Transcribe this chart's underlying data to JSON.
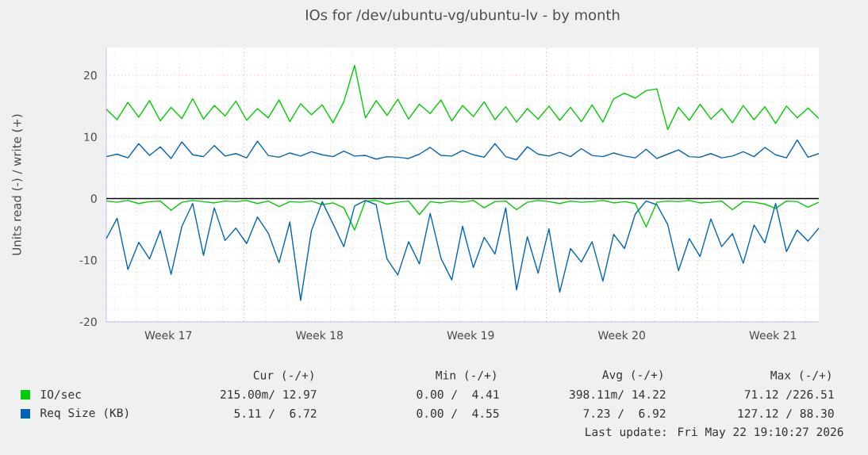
{
  "chart_data": {
    "type": "line",
    "title": "IOs for /dev/ubuntu-vg/ubuntu-lv - by month",
    "ylabel": "Units read (-) / write (+)",
    "x": [
      "2026-04-20T15:00",
      "2026-04-21T03:00",
      "2026-04-21T15:00",
      "2026-04-22T03:00",
      "2026-04-22T15:00",
      "2026-04-23T03:00",
      "2026-04-23T15:00",
      "2026-04-24T03:00",
      "2026-04-24T15:00",
      "2026-04-25T03:00",
      "2026-04-25T15:00",
      "2026-04-26T03:00",
      "2026-04-26T15:00",
      "2026-04-27T03:00",
      "2026-04-27T15:00",
      "2026-04-28T03:00",
      "2026-04-28T15:00",
      "2026-04-29T03:00",
      "2026-04-29T15:00",
      "2026-04-30T03:00",
      "2026-04-30T15:00",
      "2026-05-01T03:00",
      "2026-05-01T15:00",
      "2026-05-02T03:00",
      "2026-05-02T15:00",
      "2026-05-03T03:00",
      "2026-05-03T15:00",
      "2026-05-04T03:00",
      "2026-05-04T15:00",
      "2026-05-05T03:00",
      "2026-05-05T15:00",
      "2026-05-06T03:00",
      "2026-05-06T15:00",
      "2026-05-07T03:00",
      "2026-05-07T15:00",
      "2026-05-08T03:00",
      "2026-05-08T15:00",
      "2026-05-09T03:00",
      "2026-05-09T15:00",
      "2026-05-10T03:00",
      "2026-05-10T15:00",
      "2026-05-11T03:00",
      "2026-05-11T15:00",
      "2026-05-12T03:00",
      "2026-05-12T15:00",
      "2026-05-13T03:00",
      "2026-05-13T15:00",
      "2026-05-14T03:00",
      "2026-05-14T15:00",
      "2026-05-15T03:00",
      "2026-05-15T15:00",
      "2026-05-16T03:00",
      "2026-05-16T15:00",
      "2026-05-17T03:00",
      "2026-05-17T15:00",
      "2026-05-18T03:00",
      "2026-05-18T15:00",
      "2026-05-19T03:00",
      "2026-05-19T15:00",
      "2026-05-20T03:00",
      "2026-05-20T15:00",
      "2026-05-21T03:00",
      "2026-05-21T15:00",
      "2026-05-22T03:00",
      "2026-05-22T15:00",
      "2026-05-23T03:00",
      "2026-05-23T15:00"
    ],
    "series": [
      {
        "name": "IO/sec",
        "color": "#00cc00",
        "values": [
          14.5,
          12.8,
          15.6,
          13.2,
          15.9,
          12.6,
          14.8,
          13.0,
          16.2,
          12.9,
          15.1,
          13.4,
          15.8,
          12.7,
          14.6,
          13.1,
          16.0,
          12.5,
          15.4,
          13.6,
          15.2,
          12.3,
          15.7,
          21.6,
          13.1,
          15.9,
          13.5,
          16.1,
          12.9,
          15.3,
          13.8,
          16.0,
          12.6,
          15.1,
          13.3,
          15.7,
          12.8,
          14.9,
          12.4,
          14.6,
          12.9,
          15.0,
          12.7,
          14.8,
          12.5,
          15.2,
          12.4,
          16.2,
          17.1,
          16.3,
          17.5,
          17.8,
          11.2,
          14.8,
          12.7,
          15.3,
          12.9,
          14.6,
          12.3,
          15.1,
          12.8,
          14.9,
          12.2,
          15.0,
          13.1,
          14.7,
          13.0
        ]
      },
      {
        "color": "#00cc00",
        "values": [
          -0.4,
          -0.6,
          -0.3,
          -0.8,
          -0.5,
          -0.4,
          -1.9,
          -0.6,
          -0.3,
          -0.5,
          -0.7,
          -0.4,
          -0.5,
          -0.3,
          -0.8,
          -0.4,
          -1.3,
          -0.5,
          -0.6,
          -0.4,
          -1.0,
          -0.7,
          -1.5,
          -5.1,
          -0.4,
          -0.3,
          -0.9,
          -0.6,
          -0.4,
          -2.6,
          -0.5,
          -0.7,
          -0.4,
          -0.6,
          -0.3,
          -1.5,
          -0.5,
          -0.4,
          -1.8,
          -0.6,
          -0.3,
          -0.5,
          -0.8,
          -0.4,
          -0.6,
          -0.5,
          -0.3,
          -0.7,
          -0.5,
          -0.8,
          -4.6,
          -0.6,
          -0.4,
          -0.5,
          -0.3,
          -0.7,
          -0.6,
          -0.4,
          -1.8,
          -0.5,
          -0.6,
          -0.9,
          -1.6,
          -0.4,
          -0.5,
          -1.4,
          -0.6
        ]
      },
      {
        "name": "Req Size (KB)",
        "color": "#0066b3",
        "values": [
          6.8,
          7.2,
          6.6,
          8.9,
          7.0,
          8.4,
          6.5,
          9.2,
          7.1,
          6.8,
          8.6,
          6.9,
          7.3,
          6.6,
          9.3,
          7.0,
          6.7,
          7.4,
          6.9,
          7.6,
          7.1,
          6.8,
          7.7,
          6.9,
          7.0,
          6.4,
          6.8,
          6.7,
          6.5,
          7.2,
          8.3,
          7.0,
          6.9,
          7.8,
          7.1,
          6.7,
          8.9,
          6.8,
          6.3,
          8.4,
          7.2,
          6.9,
          7.5,
          6.8,
          8.1,
          7.0,
          6.8,
          7.4,
          6.9,
          6.6,
          8.0,
          6.5,
          7.2,
          7.9,
          6.8,
          6.7,
          7.3,
          6.6,
          6.9,
          7.6,
          6.8,
          8.3,
          7.1,
          6.6,
          9.5,
          6.7,
          7.3
        ]
      },
      {
        "color": "#0066b3",
        "values": [
          -6.5,
          -3.2,
          -11.5,
          -7.1,
          -9.8,
          -5.2,
          -12.3,
          -4.5,
          -0.8,
          -9.2,
          -1.5,
          -6.8,
          -4.8,
          -7.3,
          -3.0,
          -5.6,
          -10.4,
          -3.8,
          -16.5,
          -5.2,
          -0.5,
          -4.1,
          -7.8,
          -1.2,
          -0.3,
          -1.0,
          -9.8,
          -12.4,
          -7.0,
          -10.6,
          -2.4,
          -9.7,
          -13.2,
          -4.5,
          -11.2,
          -6.3,
          -9.0,
          -1.5,
          -14.8,
          -6.2,
          -12.1,
          -4.9,
          -15.2,
          -8.1,
          -10.3,
          -7.0,
          -13.4,
          -5.8,
          -8.1,
          -2.5,
          -0.4,
          -1.0,
          -4.2,
          -11.7,
          -6.5,
          -9.4,
          -3.3,
          -7.8,
          -5.7,
          -10.5,
          -4.3,
          -7.2,
          -0.8,
          -8.6,
          -5.1,
          -6.9,
          -4.8
        ]
      }
    ],
    "xlim": [
      "2026-04-20T15:00",
      "2026-05-23T15:00"
    ],
    "xticks": [
      {
        "value": "2026-04-23T12:00",
        "label": "Week 17"
      },
      {
        "value": "2026-04-27",
        "label": null
      },
      {
        "value": "2026-04-30T12:00",
        "label": "Week 18"
      },
      {
        "value": "2026-05-04",
        "label": null
      },
      {
        "value": "2026-05-07T12:00",
        "label": "Week 19"
      },
      {
        "value": "2026-05-11",
        "label": null
      },
      {
        "value": "2026-05-14T12:00",
        "label": "Week 20"
      },
      {
        "value": "2026-05-18",
        "label": null
      },
      {
        "value": "2026-05-21T12:00",
        "label": "Week 21"
      }
    ],
    "ylim": [
      -20,
      24.5
    ],
    "yticks": [
      -20,
      -10,
      0,
      10,
      20
    ],
    "grid": true,
    "legend": "bottom left",
    "marker": "none",
    "line_style": "solid",
    "ref_lines": [
      {
        "axis": "y",
        "value": 0,
        "color": "#000000"
      }
    ],
    "annotations": [
      "Cur (-/+)",
      "Min (-/+)",
      "Avg (-/+)",
      "Max (-/+)",
      "215.00m/ 12.97",
      "0.00 /  4.41",
      "398.11m/ 14.22",
      "71.12 /226.51",
      "5.11 /  6.72",
      "0.00 /  4.55",
      "7.23 /  6.92",
      "127.12 / 88.30",
      "Last update: Fri May 22 19:10:27 2026"
    ]
  }
}
